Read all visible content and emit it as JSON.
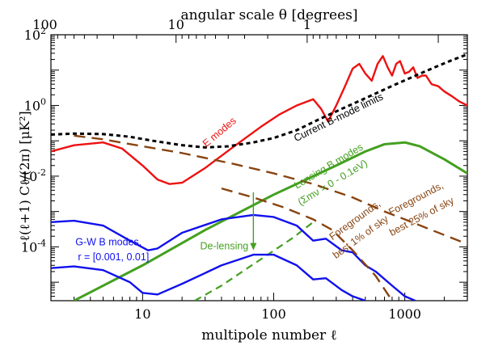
{
  "chart_data": {
    "type": "line",
    "xlabel": "multipole number ℓ",
    "x2label": "angular scale θ [degrees]",
    "ylabel": "ℓ(ℓ+1) Cℓ/(2π) [μK²]",
    "xscale": "log",
    "yscale": "log",
    "xlim": [
      2,
      3000
    ],
    "ylim": [
      3e-06,
      100
    ],
    "xticks": [
      {
        "value": 10,
        "label": "10"
      },
      {
        "value": 100,
        "label": "100"
      },
      {
        "value": 1000,
        "label": "1000"
      }
    ],
    "x2ticks": [
      {
        "value": 1.8,
        "label": "100"
      },
      {
        "value": 18,
        "label": "10"
      },
      {
        "value": 180,
        "label": "1"
      }
    ],
    "yticks": [
      {
        "exp": -4,
        "label_base": "10",
        "label_exp": "-4"
      },
      {
        "exp": -2,
        "label_base": "10",
        "label_exp": "-2"
      },
      {
        "exp": 0,
        "label_base": "10",
        "label_exp": "0"
      },
      {
        "exp": 2,
        "label_base": "10",
        "label_exp": "2"
      }
    ],
    "series": [
      {
        "key": "emodes",
        "color": "#ee1111",
        "width": 2.4,
        "dash": "",
        "points": [
          [
            2,
            0.05
          ],
          [
            3,
            0.075
          ],
          [
            5,
            0.09
          ],
          [
            7,
            0.06
          ],
          [
            10,
            0.02
          ],
          [
            13,
            0.008
          ],
          [
            16,
            0.006
          ],
          [
            20,
            0.0065
          ],
          [
            30,
            0.017
          ],
          [
            50,
            0.07
          ],
          [
            80,
            0.25
          ],
          [
            110,
            0.55
          ],
          [
            150,
            1.0
          ],
          [
            200,
            1.5
          ],
          [
            230,
            0.8
          ],
          [
            260,
            0.35
          ],
          [
            300,
            1.0
          ],
          [
            350,
            3.5
          ],
          [
            400,
            11
          ],
          [
            450,
            15
          ],
          [
            500,
            8
          ],
          [
            560,
            5
          ],
          [
            620,
            15
          ],
          [
            680,
            25
          ],
          [
            740,
            12
          ],
          [
            800,
            7
          ],
          [
            860,
            15
          ],
          [
            920,
            18
          ],
          [
            1000,
            8
          ],
          [
            1080,
            9
          ],
          [
            1160,
            12
          ],
          [
            1250,
            6
          ],
          [
            1350,
            7
          ],
          [
            1450,
            7
          ],
          [
            1600,
            4
          ],
          [
            1800,
            3.5
          ],
          [
            2000,
            2.5
          ],
          [
            2300,
            1.8
          ],
          [
            2600,
            1.3
          ],
          [
            3000,
            1.0
          ]
        ]
      },
      {
        "key": "bmode_limits",
        "color": "#000000",
        "width": 3,
        "dash": "5,4",
        "points": [
          [
            2,
            0.15
          ],
          [
            3,
            0.16
          ],
          [
            5,
            0.155
          ],
          [
            8,
            0.13
          ],
          [
            12,
            0.1
          ],
          [
            20,
            0.075
          ],
          [
            30,
            0.065
          ],
          [
            45,
            0.07
          ],
          [
            70,
            0.09
          ],
          [
            100,
            0.12
          ],
          [
            150,
            0.2
          ],
          [
            220,
            0.4
          ],
          [
            330,
            0.8
          ],
          [
            500,
            1.6
          ],
          [
            750,
            3.2
          ],
          [
            1100,
            6
          ],
          [
            1600,
            11
          ],
          [
            2200,
            18
          ],
          [
            3000,
            28
          ]
        ]
      },
      {
        "key": "lensing",
        "color": "#44a020",
        "width": 3,
        "dash": "",
        "points": [
          [
            3,
            3e-06
          ],
          [
            10,
            3e-05
          ],
          [
            30,
            0.0003
          ],
          [
            100,
            0.003
          ],
          [
            300,
            0.02
          ],
          [
            500,
            0.05
          ],
          [
            700,
            0.08
          ],
          [
            1000,
            0.09
          ],
          [
            1300,
            0.07
          ],
          [
            2000,
            0.03
          ],
          [
            3000,
            0.012
          ]
        ]
      },
      {
        "key": "delensed",
        "color": "#44a020",
        "width": 2.2,
        "dash": "9,6",
        "points": [
          [
            25,
            3e-06
          ],
          [
            40,
            8e-06
          ],
          [
            60,
            2.2e-05
          ],
          [
            90,
            6e-05
          ],
          [
            140,
            0.00018
          ],
          [
            200,
            0.0005
          ]
        ]
      },
      {
        "key": "gw_high",
        "color": "#1111ee",
        "width": 2.4,
        "dash": "",
        "points": [
          [
            2,
            0.0005
          ],
          [
            3,
            0.00055
          ],
          [
            5,
            0.0004
          ],
          [
            8,
            0.00015
          ],
          [
            11,
            8e-05
          ],
          [
            13,
            9e-05
          ],
          [
            20,
            0.00025
          ],
          [
            40,
            0.0006
          ],
          [
            70,
            0.0008
          ],
          [
            100,
            0.0007
          ],
          [
            150,
            0.0004
          ],
          [
            200,
            0.00015
          ],
          [
            250,
            0.00017
          ],
          [
            330,
            8e-05
          ],
          [
            400,
            7e-05
          ],
          [
            500,
            3e-05
          ],
          [
            600,
            2e-05
          ],
          [
            800,
            8e-06
          ],
          [
            1000,
            4e-06
          ],
          [
            1200,
            3e-06
          ]
        ]
      },
      {
        "key": "gw_low",
        "color": "#1111ee",
        "width": 2.4,
        "dash": "",
        "points": [
          [
            2,
            2.5e-05
          ],
          [
            3,
            2.8e-05
          ],
          [
            5,
            2.2e-05
          ],
          [
            8,
            1e-05
          ],
          [
            10,
            5e-06
          ],
          [
            13,
            4.5e-06
          ],
          [
            20,
            9e-06
          ],
          [
            40,
            3e-05
          ],
          [
            70,
            6e-05
          ],
          [
            100,
            6e-05
          ],
          [
            150,
            3e-05
          ],
          [
            200,
            1.2e-05
          ],
          [
            250,
            1.3e-05
          ],
          [
            330,
            6e-06
          ],
          [
            400,
            4e-06
          ],
          [
            500,
            3e-06
          ]
        ]
      },
      {
        "key": "fg_25",
        "color": "#884411",
        "width": 2.4,
        "dash": "14,8",
        "points": [
          [
            3,
            0.14
          ],
          [
            5,
            0.11
          ],
          [
            10,
            0.07
          ],
          [
            20,
            0.045
          ],
          [
            50,
            0.022
          ],
          [
            100,
            0.012
          ],
          [
            200,
            0.006
          ],
          [
            400,
            0.0025
          ],
          [
            700,
            0.001
          ],
          [
            1000,
            0.0006
          ],
          [
            1600,
            0.0003
          ],
          [
            3000,
            0.00012
          ]
        ]
      },
      {
        "key": "fg_1",
        "color": "#884411",
        "width": 2.4,
        "dash": "14,8",
        "points": [
          [
            40,
            0.0045
          ],
          [
            70,
            0.0025
          ],
          [
            120,
            0.0013
          ],
          [
            200,
            0.0006
          ],
          [
            280,
            0.0003
          ],
          [
            400,
            8e-05
          ],
          [
            600,
            1.5e-05
          ],
          [
            800,
            3e-06
          ]
        ]
      }
    ],
    "delensing_arrow": {
      "x": 70,
      "y_from": 0.0035,
      "y_to": 8e-05,
      "color": "#44a020"
    },
    "annotations": [
      {
        "key": "e_modes",
        "text": "E modes",
        "x": 40,
        "y": 0.15,
        "rotate": -40,
        "color": "#ee1111"
      },
      {
        "key": "current_limits",
        "text": "Current B-mode limits",
        "x": 320,
        "y": 0.38,
        "rotate": -26,
        "color": "#000000"
      },
      {
        "key": "lensing_1",
        "text": "Lensing B modes",
        "x": 270,
        "y": 0.016,
        "rotate": -31,
        "color": "#44a020"
      },
      {
        "key": "lensing_2",
        "text": "(Σmν = 0 - 0.1eV)",
        "x": 290,
        "y": 0.0055,
        "rotate": -31,
        "color": "#44a020"
      },
      {
        "key": "fg25_1",
        "text": "Foregrounds,",
        "x": 1250,
        "y": 0.0019,
        "rotate": -28,
        "color": "#884411"
      },
      {
        "key": "fg25_2",
        "text": "best 25% of sky",
        "x": 1380,
        "y": 0.0006,
        "rotate": -28,
        "color": "#884411"
      },
      {
        "key": "fg1_1",
        "text": "Foregrounds,",
        "x": 430,
        "y": 0.00048,
        "rotate": -36,
        "color": "#884411"
      },
      {
        "key": "fg1_2",
        "text": "best 1% of sky",
        "x": 475,
        "y": 0.00016,
        "rotate": -36,
        "color": "#884411"
      },
      {
        "key": "delensing",
        "text": "De-lensing",
        "x": 42,
        "y": 8.5e-05,
        "rotate": 0,
        "color": "#44a020"
      },
      {
        "key": "gw_1",
        "text": "G-W B modes,",
        "x": 5.5,
        "y": 0.00011,
        "rotate": 0,
        "color": "#1111ee"
      },
      {
        "key": "gw_2",
        "text": "r = [0.001, 0.01]",
        "x": 6.0,
        "y": 4.2e-05,
        "rotate": 0,
        "color": "#1111ee"
      }
    ]
  }
}
